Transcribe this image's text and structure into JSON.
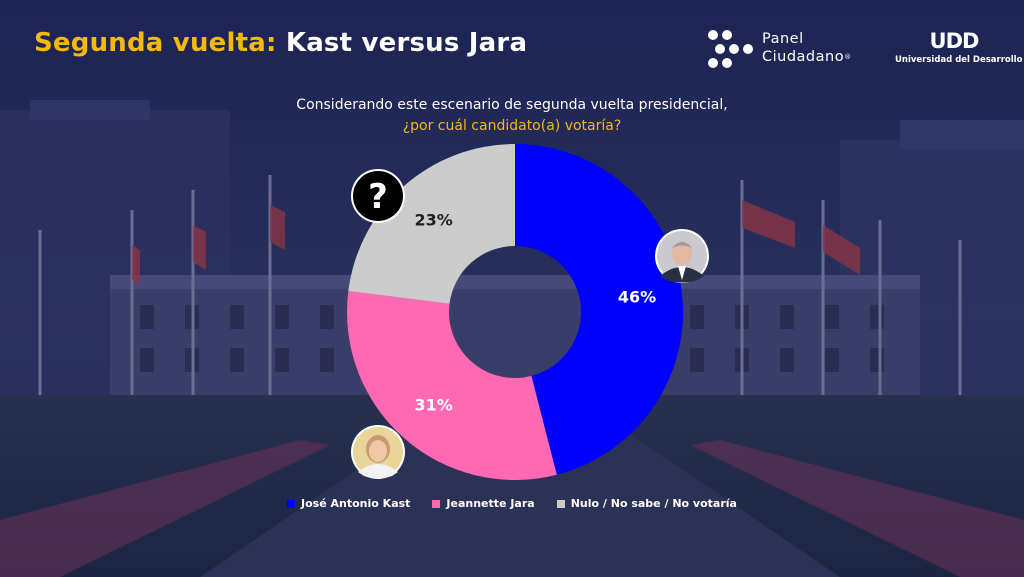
{
  "header": {
    "title_highlight": "Segunda vuelta:",
    "title_rest": "Kast versus Jara"
  },
  "question": {
    "line1": "Considerando este escenario de segunda vuelta presidencial,",
    "line2": "¿por cuál candidato(a) votaría?"
  },
  "logos": {
    "panel_line1": "Panel",
    "panel_line2": "Ciudadano",
    "panel_reg": "®",
    "udd_mark": "UDD",
    "udd_sub": "Universidad del Desarrollo"
  },
  "colors": {
    "accent": "#f5b80f",
    "kast": "#0000ff",
    "jara": "#ff69b4",
    "nulo": "#cccccc"
  },
  "chart_data": {
    "type": "pie",
    "donut": true,
    "categories": [
      "José Antonio Kast",
      "Jeannette Jara",
      "Nulo / No sabe / No votaría"
    ],
    "values": [
      46,
      31,
      23
    ],
    "labels": [
      "46%",
      "31%",
      "23%"
    ],
    "colors": [
      "#0000ff",
      "#ff69b4",
      "#cccccc"
    ],
    "label_colors": [
      "#ffffff",
      "#ffffff",
      "#222222"
    ],
    "unit": "%",
    "legend_position": "bottom",
    "icons": [
      "photo-kast-icon",
      "photo-jara-icon",
      "question-mark-icon"
    ],
    "question_glyph": "?"
  }
}
